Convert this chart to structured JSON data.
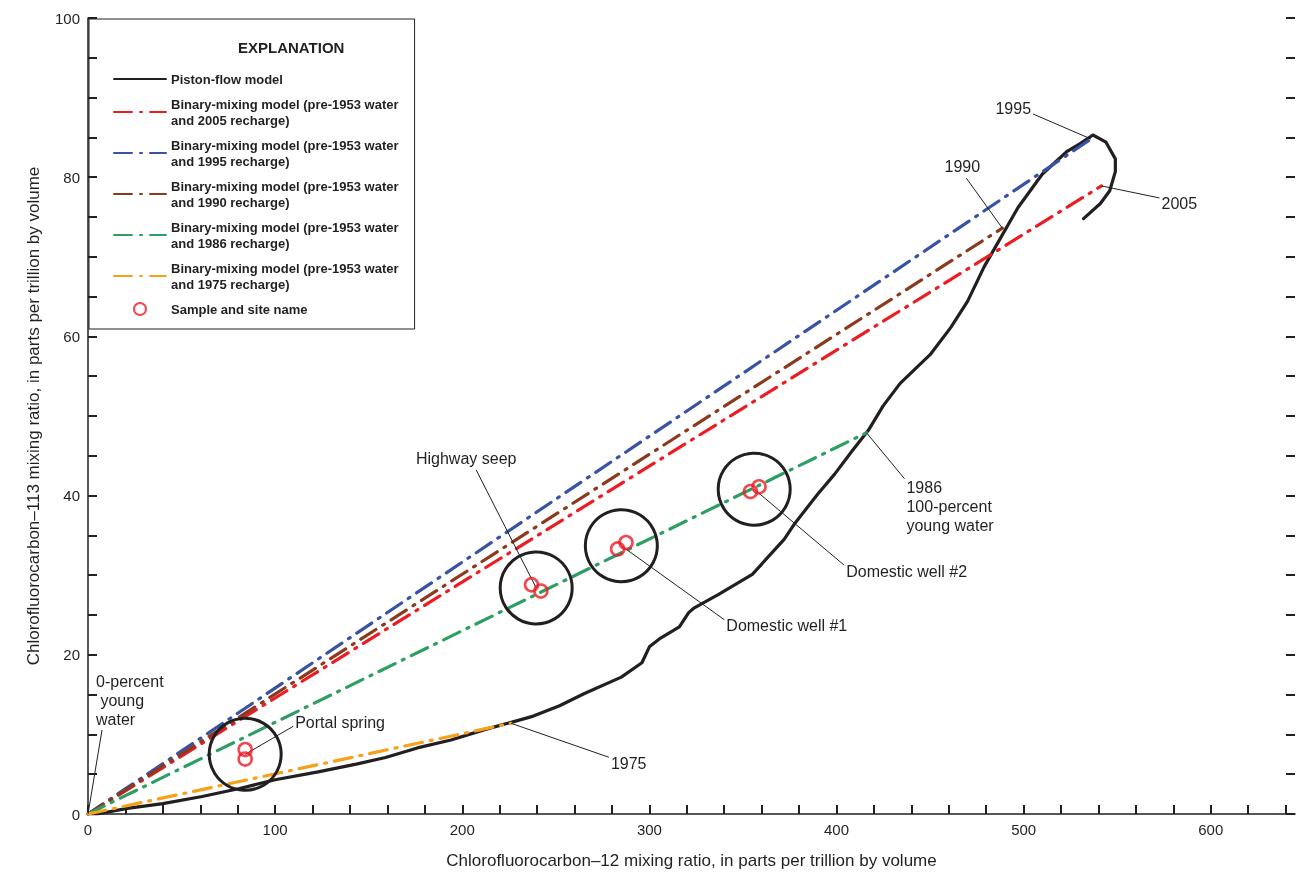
{
  "chart_data": {
    "type": "line",
    "xlabel": "Chlorofluorocarbon–12 mixing ratio, in parts per trillion by volume",
    "ylabel": "Chlorofluorocarbon–113 mixing ratio, in parts per trillion by volume",
    "legend_title": "EXPLANATION",
    "legend": "top left",
    "xlim": [
      0,
      645
    ],
    "ylim": [
      0,
      100
    ],
    "xticks": [
      0,
      {
        "value": 20,
        "label": null
      },
      {
        "value": 40,
        "label": null
      },
      {
        "value": 60,
        "label": null
      },
      {
        "value": 80,
        "label": null
      },
      100,
      {
        "value": 120,
        "label": null
      },
      {
        "value": 140,
        "label": null
      },
      {
        "value": 160,
        "label": null
      },
      {
        "value": 180,
        "label": null
      },
      200,
      {
        "value": 220,
        "label": null
      },
      {
        "value": 240,
        "label": null
      },
      {
        "value": 260,
        "label": null
      },
      {
        "value": 280,
        "label": null
      },
      300,
      {
        "value": 320,
        "label": null
      },
      {
        "value": 340,
        "label": null
      },
      {
        "value": 360,
        "label": null
      },
      {
        "value": 380,
        "label": null
      },
      400,
      {
        "value": 420,
        "label": null
      },
      {
        "value": 440,
        "label": null
      },
      {
        "value": 460,
        "label": null
      },
      {
        "value": 480,
        "label": null
      },
      500,
      {
        "value": 520,
        "label": null
      },
      {
        "value": 540,
        "label": null
      },
      {
        "value": 560,
        "label": null
      },
      {
        "value": 580,
        "label": null
      },
      600,
      {
        "value": 620,
        "label": null
      },
      {
        "value": 640,
        "label": null
      }
    ],
    "yticks": [
      0,
      {
        "value": 5,
        "label": null
      },
      {
        "value": 10,
        "label": null
      },
      {
        "value": 15,
        "label": null
      },
      20,
      {
        "value": 25,
        "label": null
      },
      {
        "value": 30,
        "label": null
      },
      {
        "value": 35,
        "label": null
      },
      40,
      {
        "value": 45,
        "label": null
      },
      {
        "value": 50,
        "label": null
      },
      {
        "value": 55,
        "label": null
      },
      60,
      {
        "value": 65,
        "label": null
      },
      {
        "value": 70,
        "label": null
      },
      {
        "value": 75,
        "label": null
      },
      80,
      {
        "value": 85,
        "label": null
      },
      {
        "value": 90,
        "label": null
      },
      {
        "value": 95,
        "label": null
      },
      100
    ],
    "series": [
      {
        "name": "Piston-flow model",
        "color": "#231f20",
        "line_style": "solid",
        "marker": "none",
        "x": [
          0,
          5,
          21,
          40,
          61,
          81,
          100,
          123,
          144,
          159,
          176,
          194,
          212,
          229,
          238,
          252,
          265,
          285,
          296,
          300,
          306,
          316,
          321,
          324,
          337,
          355,
          372,
          378,
          390,
          399,
          408,
          417,
          425,
          434,
          450,
          461,
          470,
          479,
          488,
          497,
          510,
          523,
          530,
          537,
          544,
          549,
          549,
          546,
          541,
          532
        ],
        "values": [
          0,
          0,
          0.7,
          1.3,
          2.2,
          3.2,
          4.3,
          5.3,
          6.3,
          7.1,
          8.3,
          9.3,
          10.6,
          11.7,
          12.3,
          13.6,
          15.1,
          17.2,
          19,
          21,
          22.1,
          23.5,
          25.3,
          25.9,
          27.6,
          30.1,
          34.5,
          36.6,
          40.2,
          42.7,
          45.5,
          48.2,
          51.3,
          54.1,
          57.7,
          61.1,
          64.4,
          68.8,
          72.5,
          76.2,
          80.4,
          83.2,
          84.2,
          85.3,
          84.4,
          82.3,
          80.7,
          78.3,
          76.7,
          74.8
        ]
      },
      {
        "name": "Binary-mixing model (pre-1953 water and 2005 recharge)",
        "color": "#ed1c24",
        "line_style": "dashed",
        "marker": "none",
        "x": [
          0,
          541.6
        ],
        "values": [
          0,
          78.9
        ]
      },
      {
        "name": "Binary-mixing model (pre-1953 water and 1995 recharge)",
        "color": "#3953a4",
        "line_style": "dashed",
        "marker": "none",
        "x": [
          0,
          536
        ],
        "values": [
          0,
          84.8
        ]
      },
      {
        "name": "Binary-mixing model (pre-1953 water and 1990 recharge)",
        "color": "#8b3a1e",
        "line_style": "dashed",
        "marker": "none",
        "x": [
          0,
          488.6
        ],
        "values": [
          0,
          73.6
        ]
      },
      {
        "name": "Binary-mixing model (pre-1953 water and 1986 recharge)",
        "color": "#2e9e64",
        "line_style": "dashed",
        "marker": "none",
        "x": [
          0,
          416
        ],
        "values": [
          0,
          47.9
        ]
      },
      {
        "name": "Binary-mixing model (pre-1953 water and 1975 recharge)",
        "color": "#f7a11a",
        "line_style": "dashed",
        "marker": "none",
        "x": [
          0,
          226
        ],
        "values": [
          0,
          11.4
        ]
      },
      {
        "name": "Sample and site name",
        "type": "scatter",
        "color": "#ed1c24",
        "marker": "circle",
        "x": [
          84,
          84,
          237,
          242,
          283,
          287.5,
          354,
          358.6
        ],
        "values": [
          8.1,
          6.9,
          28.8,
          28,
          33.3,
          34.1,
          40.5,
          41.1
        ]
      }
    ],
    "annotations": [
      {
        "text": "0-percent young water",
        "x": 0,
        "y": 0
      },
      {
        "text": "Portal spring",
        "x": 84,
        "y": 7.5
      },
      {
        "text": "Highway seep",
        "x": 239.5,
        "y": 28.4
      },
      {
        "text": "Domestic well #1",
        "x": 285,
        "y": 33.7
      },
      {
        "text": "Domestic well #2",
        "x": 356,
        "y": 40.8
      },
      {
        "text": "1986 100-percent young water",
        "x": 416,
        "y": 47.9
      },
      {
        "text": "1975",
        "x": 226,
        "y": 11.4
      },
      {
        "text": "1995",
        "x": 536,
        "y": 84.8
      },
      {
        "text": "1990",
        "x": 488.6,
        "y": 73.6
      },
      {
        "text": "2005",
        "x": 541.6,
        "y": 78.9
      }
    ]
  }
}
